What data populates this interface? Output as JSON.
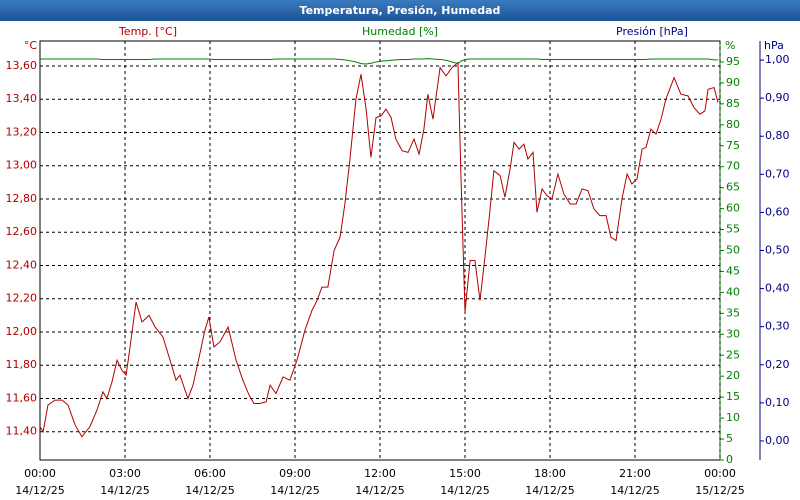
{
  "chart_data": {
    "type": "line",
    "title": "Temperatura, Presión, Humedad",
    "y_label": "Temp. [°C]",
    "y2_label": "Humedad [%]",
    "y3_label": "Presión [hPa]",
    "y_unit": "°C",
    "y2_unit": "%",
    "y3_unit": "hPa",
    "x": [
      0,
      0.11,
      0.28,
      0.53,
      0.78,
      0.99,
      1.24,
      1.48,
      1.76,
      2.01,
      2.22,
      2.36,
      2.54,
      2.72,
      2.89,
      3.04,
      3.21,
      3.39,
      3.6,
      3.85,
      4.06,
      4.34,
      4.59,
      4.8,
      4.94,
      5.22,
      5.4,
      5.58,
      5.82,
      5.96,
      6.14,
      6.35,
      6.64,
      6.92,
      7.16,
      7.38,
      7.55,
      7.76,
      7.98,
      8.12,
      8.33,
      8.58,
      8.82,
      9.07,
      9.35,
      9.6,
      9.78,
      9.95,
      10.16,
      10.38,
      10.59,
      10.76,
      10.94,
      11.15,
      11.33,
      11.51,
      11.68,
      11.86,
      12.04,
      12.21,
      12.39,
      12.56,
      12.78,
      12.99,
      13.2,
      13.38,
      13.55,
      13.69,
      13.87,
      14.12,
      14.33,
      14.54,
      14.75,
      14.86,
      15,
      15.18,
      15.35,
      15.53,
      15.71,
      15.88,
      16.02,
      16.24,
      16.41,
      16.59,
      16.73,
      16.91,
      17.08,
      17.22,
      17.4,
      17.54,
      17.72,
      17.89,
      18.07,
      18.28,
      18.49,
      18.71,
      18.92,
      19.13,
      19.34,
      19.55,
      19.76,
      19.98,
      20.15,
      20.33,
      20.54,
      20.72,
      20.89,
      21.07,
      21.25,
      21.39,
      21.56,
      21.74,
      21.92,
      22.09,
      22.38,
      22.62,
      22.87,
      23.08,
      23.29,
      23.47,
      23.58,
      23.79,
      23.93
    ],
    "series": [
      {
        "color": "#b00000",
        "axis": "y",
        "values": [
          11.43,
          11.4,
          11.56,
          11.59,
          11.59,
          11.56,
          11.44,
          11.37,
          11.43,
          11.53,
          11.64,
          11.6,
          11.7,
          11.83,
          11.77,
          11.74,
          11.95,
          12.18,
          12.06,
          12.1,
          12.03,
          11.97,
          11.83,
          11.71,
          11.74,
          11.6,
          11.68,
          11.82,
          12.01,
          12.09,
          11.91,
          11.94,
          12.03,
          11.83,
          11.71,
          11.62,
          11.57,
          11.57,
          11.58,
          11.68,
          11.63,
          11.73,
          11.71,
          11.83,
          12.01,
          12.13,
          12.19,
          12.27,
          12.27,
          12.49,
          12.57,
          12.77,
          13.04,
          13.4,
          13.55,
          13.34,
          13.05,
          13.29,
          13.3,
          13.34,
          13.29,
          13.16,
          13.09,
          13.08,
          13.16,
          13.07,
          13.22,
          13.43,
          13.28,
          13.59,
          13.54,
          13.59,
          13.62,
          12.92,
          12.12,
          12.43,
          12.43,
          12.19,
          12.46,
          12.73,
          12.97,
          12.94,
          12.81,
          12.98,
          13.14,
          13.1,
          13.13,
          13.04,
          13.08,
          12.72,
          12.86,
          12.82,
          12.8,
          12.95,
          12.83,
          12.77,
          12.77,
          12.86,
          12.85,
          12.74,
          12.7,
          12.7,
          12.57,
          12.55,
          12.8,
          12.95,
          12.89,
          12.92,
          13.1,
          13.11,
          13.22,
          13.19,
          13.28,
          13.4,
          13.53,
          13.43,
          13.42,
          13.35,
          13.31,
          13.33,
          13.46,
          13.47,
          13.38
        ]
      },
      {
        "color": "#008000",
        "axis": "y2",
        "values": [
          95.7,
          95.7,
          95.7,
          95.7,
          95.7,
          95.7,
          95.7,
          95.7,
          95.7,
          95.7,
          95.6,
          95.6,
          95.6,
          95.6,
          95.6,
          95.6,
          95.6,
          95.6,
          95.6,
          95.6,
          95.7,
          95.7,
          95.7,
          95.7,
          95.7,
          95.7,
          95.7,
          95.7,
          95.7,
          95.7,
          95.6,
          95.6,
          95.6,
          95.6,
          95.6,
          95.6,
          95.6,
          95.6,
          95.6,
          95.6,
          95.7,
          95.7,
          95.7,
          95.7,
          95.7,
          95.7,
          95.7,
          95.7,
          95.7,
          95.7,
          95.6,
          95.5,
          95.3,
          95.0,
          94.6,
          94.5,
          94.7,
          95.0,
          95.2,
          95.3,
          95.4,
          95.5,
          95.6,
          95.6,
          95.7,
          95.7,
          95.7,
          95.8,
          95.7,
          95.6,
          95.4,
          95.0,
          94.6,
          95.2,
          95.6,
          95.7,
          95.7,
          95.7,
          95.7,
          95.7,
          95.7,
          95.7,
          95.7,
          95.7,
          95.7,
          95.7,
          95.7,
          95.7,
          95.7,
          95.7,
          95.6,
          95.6,
          95.6,
          95.6,
          95.6,
          95.6,
          95.6,
          95.6,
          95.6,
          95.6,
          95.6,
          95.6,
          95.6,
          95.6,
          95.6,
          95.6,
          95.6,
          95.6,
          95.6,
          95.6,
          95.7,
          95.7,
          95.7,
          95.7,
          95.7,
          95.7,
          95.7,
          95.7,
          95.7,
          95.7,
          95.7,
          95.5,
          95.5
        ]
      }
    ],
    "xlim": [
      0,
      24
    ],
    "xticks": [
      {
        "value": 0,
        "label": "00:00"
      },
      {
        "value": 3,
        "label": "03:00"
      },
      {
        "value": 6,
        "label": "06:00"
      },
      {
        "value": 9,
        "label": "09:00"
      },
      {
        "value": 12,
        "label": "12:00"
      },
      {
        "value": 15,
        "label": "15:00"
      },
      {
        "value": 18,
        "label": "18:00"
      },
      {
        "value": 21,
        "label": "21:00"
      },
      {
        "value": 24,
        "label": "00:00"
      }
    ],
    "xtick_dates": [
      "14/12/25",
      "14/12/25",
      "14/12/25",
      "14/12/25",
      "14/12/25",
      "14/12/25",
      "14/12/25",
      "14/12/25",
      "15/12/25"
    ],
    "ylim": [
      11.23,
      13.75
    ],
    "yticks": [
      {
        "value": 11.4,
        "label": "11,40"
      },
      {
        "value": 11.6,
        "label": "11,60"
      },
      {
        "value": 11.8,
        "label": "11,80"
      },
      {
        "value": 12,
        "label": "12,00"
      },
      {
        "value": 12.2,
        "label": "12,20"
      },
      {
        "value": 12.4,
        "label": "12,40"
      },
      {
        "value": 12.6,
        "label": "12,60"
      },
      {
        "value": 12.8,
        "label": "12,80"
      },
      {
        "value": 13,
        "label": "13,00"
      },
      {
        "value": 13.2,
        "label": "13,20"
      },
      {
        "value": 13.4,
        "label": "13,40"
      },
      {
        "value": 13.6,
        "label": "13,60"
      }
    ],
    "y2lim": [
      0,
      100
    ],
    "y2ticks": [
      0,
      5,
      10,
      15,
      20,
      25,
      30,
      35,
      40,
      45,
      50,
      55,
      60,
      65,
      70,
      75,
      80,
      85,
      90,
      95
    ],
    "y3lim": [
      -0.05,
      1.05
    ],
    "y3ticks": [
      {
        "value": 0,
        "label": "0,00"
      },
      {
        "value": 0.1,
        "label": "0,10"
      },
      {
        "value": 0.2,
        "label": "0,20"
      },
      {
        "value": 0.3,
        "label": "0,30"
      },
      {
        "value": 0.4,
        "label": "0,40"
      },
      {
        "value": 0.5,
        "label": "0,50"
      },
      {
        "value": 0.6,
        "label": "0,60"
      },
      {
        "value": 0.7,
        "label": "0,70"
      },
      {
        "value": 0.8,
        "label": "0,80"
      },
      {
        "value": 0.9,
        "label": "0,90"
      },
      {
        "value": 1,
        "label": "1,00"
      }
    ],
    "y_color": "#b00000",
    "y2_color": "#008000",
    "y3_color": "#000080",
    "grid": true
  }
}
